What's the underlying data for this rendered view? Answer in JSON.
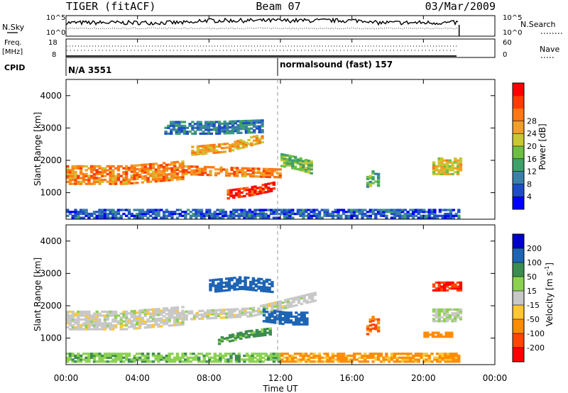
{
  "header": {
    "title": "TIGER (fitACF)",
    "beam": "Beam 07",
    "date": "03/Mar/2009"
  },
  "param_panels": {
    "nsky": {
      "label": "N.Sky",
      "ticks": [
        "10^5",
        "10^0"
      ]
    },
    "nsearch": {
      "label": "N.Search",
      "ticks": [
        "10^5",
        "10^0"
      ]
    },
    "freq": {
      "label_line1": "Freq.",
      "label_line2": "[MHz]",
      "ticks": [
        "18",
        "8"
      ]
    },
    "nave": {
      "label": "Nave",
      "ticks": [
        "60",
        "0"
      ]
    },
    "cpid": {
      "label": "CPID",
      "segments": [
        {
          "text": "N/A 3551",
          "start_hour": 0
        },
        {
          "text": "normalsound (fast) 157",
          "start_hour": 12
        }
      ]
    }
  },
  "time_axis": {
    "label": "Time UT",
    "ticks": [
      "00:00",
      "04:00",
      "08:00",
      "12:00",
      "16:00",
      "20:00",
      "00:00"
    ],
    "data_end_hour": 22
  },
  "chart_data": [
    {
      "type": "heatmap",
      "name": "power",
      "ylabel": "Slant Range [km]",
      "yticks": [
        1000,
        2000,
        3000,
        4000
      ],
      "ylim": [
        180,
        4500
      ],
      "xlim_hours": [
        0,
        24
      ],
      "colorbar": {
        "label": "Power [dB]",
        "ticks": [
          "4",
          "8",
          "12",
          "16",
          "20",
          "24",
          "28"
        ],
        "colors": [
          "#0000ff",
          "#1e4cc8",
          "#3a7fa8",
          "#3fa06a",
          "#6cbf44",
          "#c8c832",
          "#f0a028",
          "#ff7814",
          "#ff3c00",
          "#ff0000"
        ]
      },
      "regions": [
        {
          "t0": 0.0,
          "t1": 6.5,
          "r_mid": [
            1550,
            1550,
            1700
          ],
          "r_half": 300,
          "level": 22
        },
        {
          "t0": 6.5,
          "t1": 12.0,
          "r_mid": [
            1700,
            1650,
            1600
          ],
          "r_half": 150,
          "level": 22
        },
        {
          "t0": 9.0,
          "t1": 11.6,
          "r_mid": [
            950,
            1050,
            1200
          ],
          "r_half": 150,
          "level": 27
        },
        {
          "t0": 7.0,
          "t1": 11.0,
          "r_mid": [
            2300,
            2400,
            2700
          ],
          "r_half": 150,
          "level": 20
        },
        {
          "t0": 5.5,
          "t1": 11.0,
          "r_mid": [
            3000,
            3000,
            3050
          ],
          "r_half": 200,
          "level": 8
        },
        {
          "t0": 12.0,
          "t1": 13.8,
          "r_mid": [
            2000,
            1900,
            1750
          ],
          "r_half": 200,
          "level": 14
        },
        {
          "t0": 16.8,
          "t1": 17.5,
          "r_mid": [
            1300,
            1500,
            1350
          ],
          "r_half": 200,
          "level": 12
        },
        {
          "t0": 20.5,
          "t1": 22.0,
          "r_mid": [
            1800,
            1800,
            1800
          ],
          "r_half": 250,
          "level": 18
        },
        {
          "t0": 0.0,
          "t1": 22.0,
          "r_mid": [
            350,
            350,
            350
          ],
          "r_half": 150,
          "level": 6
        }
      ]
    },
    {
      "type": "heatmap",
      "name": "velocity",
      "ylabel": "Slant Range [km]",
      "yticks": [
        1000,
        2000,
        3000,
        4000
      ],
      "ylim": [
        180,
        4500
      ],
      "xlim_hours": [
        0,
        24
      ],
      "colorbar": {
        "label": "Velocity [m s^-1]",
        "ticks": [
          "200",
          "100",
          "50",
          "15",
          "-15",
          "-50",
          "-100",
          "-200"
        ],
        "colors": [
          "#0000c8",
          "#1e64b4",
          "#3c8c50",
          "#8cd250",
          "#c8c8c8",
          "#ffc832",
          "#ff8c00",
          "#ff4600",
          "#ff0000"
        ]
      },
      "regions": [
        {
          "t0": 0.0,
          "t1": 6.5,
          "r_mid": [
            1550,
            1550,
            1700
          ],
          "r_half": 300,
          "velocity": 0
        },
        {
          "t0": 6.5,
          "t1": 14.0,
          "r_mid": [
            1700,
            1800,
            2300
          ],
          "r_half": 150,
          "velocity": 0
        },
        {
          "t0": 8.0,
          "t1": 11.5,
          "r_mid": [
            2600,
            2700,
            2600
          ],
          "r_half": 200,
          "velocity": 150
        },
        {
          "t0": 11.0,
          "t1": 13.5,
          "r_mid": [
            1700,
            1600,
            1600
          ],
          "r_half": 200,
          "velocity": 150
        },
        {
          "t0": 8.5,
          "t1": 11.5,
          "r_mid": [
            900,
            1100,
            1200
          ],
          "r_half": 100,
          "velocity": 60
        },
        {
          "t0": 16.8,
          "t1": 17.5,
          "r_mid": [
            1300,
            1500,
            1350
          ],
          "r_half": 200,
          "velocity": -100
        },
        {
          "t0": 20.0,
          "t1": 21.5,
          "r_mid": [
            1100,
            1100,
            1100
          ],
          "r_half": 80,
          "velocity": -80
        },
        {
          "t0": 20.5,
          "t1": 22.0,
          "r_mid": [
            2600,
            2600,
            2600
          ],
          "r_half": 150,
          "velocity": -200
        },
        {
          "t0": 20.5,
          "t1": 22.0,
          "r_mid": [
            1700,
            1700,
            1700
          ],
          "r_half": 200,
          "velocity": 20
        },
        {
          "t0": 0.0,
          "t1": 12.0,
          "r_mid": [
            400,
            400,
            400
          ],
          "r_half": 150,
          "velocity": 40
        },
        {
          "t0": 12.0,
          "t1": 22.0,
          "r_mid": [
            400,
            400,
            400
          ],
          "r_half": 150,
          "velocity": -60
        }
      ]
    }
  ]
}
